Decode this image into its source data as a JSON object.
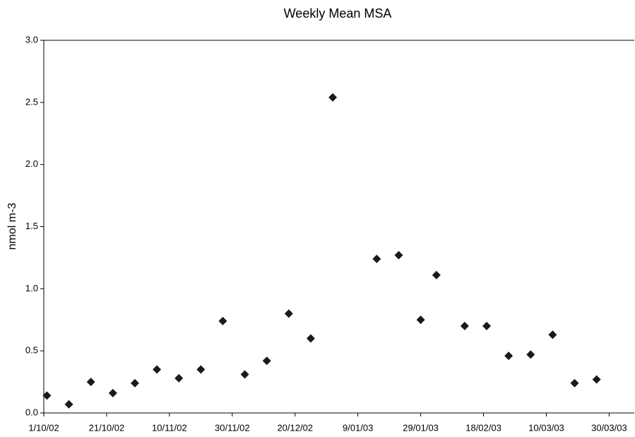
{
  "chart_data": {
    "type": "scatter",
    "title": "Weekly Mean MSA",
    "y_label": "nmol m-3",
    "x": [
      "2002-10-02",
      "2002-10-09",
      "2002-10-16",
      "2002-10-23",
      "2002-10-30",
      "2002-11-06",
      "2002-11-13",
      "2002-11-20",
      "2002-11-27",
      "2002-12-04",
      "2002-12-11",
      "2002-12-18",
      "2002-12-25",
      "2003-01-01",
      "2003-01-15",
      "2003-01-22",
      "2003-01-29",
      "2003-02-03",
      "2003-02-12",
      "2003-02-19",
      "2003-02-26",
      "2003-03-05",
      "2003-03-12",
      "2003-03-19",
      "2003-03-26"
    ],
    "series": [
      {
        "name": "Weekly Mean MSA",
        "color": "#1a1a1a",
        "values": [
          0.14,
          0.07,
          0.25,
          0.16,
          0.24,
          0.35,
          0.28,
          0.35,
          0.74,
          0.31,
          0.42,
          0.8,
          0.6,
          2.54,
          1.24,
          1.27,
          0.75,
          1.11,
          0.7,
          0.7,
          0.46,
          0.47,
          0.63,
          0.24,
          0.27
        ]
      }
    ],
    "xlim": [
      "2002-10-01",
      "2003-04-07"
    ],
    "xticks": [
      {
        "value": "2002-10-01",
        "label": "1/10/02"
      },
      {
        "value": "2002-10-21",
        "label": "21/10/02"
      },
      {
        "value": "2002-11-10",
        "label": "10/11/02"
      },
      {
        "value": "2002-11-30",
        "label": "30/11/02"
      },
      {
        "value": "2002-12-20",
        "label": "20/12/02"
      },
      {
        "value": "2003-01-09",
        "label": "9/01/03"
      },
      {
        "value": "2003-01-29",
        "label": "29/01/03"
      },
      {
        "value": "2003-02-18",
        "label": "18/02/03"
      },
      {
        "value": "2003-03-10",
        "label": "10/03/03"
      },
      {
        "value": "2003-03-30",
        "label": "30/03/03"
      }
    ],
    "ylim": [
      0,
      3
    ],
    "yticks": [
      {
        "value": 0,
        "label": "0.0"
      },
      0.5,
      {
        "value": 1,
        "label": "1.0"
      },
      1.5,
      {
        "value": 2,
        "label": "2.0"
      },
      2.5,
      {
        "value": 3,
        "label": "3.0"
      }
    ],
    "grid": false
  }
}
